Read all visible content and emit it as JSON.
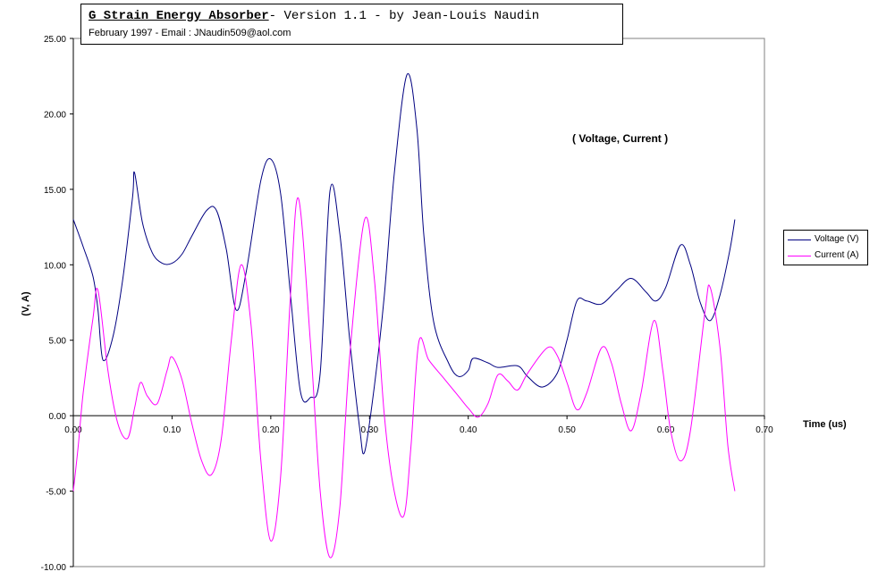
{
  "header": {
    "title_main": "G Strain Energy Absorber",
    "title_rest": "- Version 1.1 - by Jean-Louis Naudin",
    "subtitle": "February 1997 - Email : JNaudin509@aol.com"
  },
  "annotation": "( Voltage, Current )",
  "legend": {
    "placement": "right",
    "items": [
      {
        "label": "Voltage (V)",
        "color": "#000080"
      },
      {
        "label": "Current (A)",
        "color": "#ff00ff"
      }
    ]
  },
  "chart_data": {
    "type": "line",
    "title": "G Strain Energy Absorber- Version 1.1 - by Jean-Louis Naudin",
    "xlabel": "Time (us)",
    "ylabel": "(V, A)",
    "xlim": [
      0,
      0.7
    ],
    "ylim": [
      -10,
      25
    ],
    "x_ticks": [
      "0.00",
      "0.10",
      "0.20",
      "0.30",
      "0.40",
      "0.50",
      "0.60",
      "0.70"
    ],
    "y_ticks": [
      "25.00",
      "20.00",
      "15.00",
      "10.00",
      "5.00",
      "0.00",
      "-5.00",
      "-10.00"
    ],
    "grid": false,
    "series": [
      {
        "name": "Voltage (V)",
        "color": "#000080",
        "points": [
          [
            0,
            13
          ],
          [
            0.01,
            11.2
          ],
          [
            0.02,
            9.2
          ],
          [
            0.025,
            7.0
          ],
          [
            0.03,
            3.7
          ],
          [
            0.04,
            5.2
          ],
          [
            0.05,
            9.0
          ],
          [
            0.06,
            14.5
          ],
          [
            0.062,
            16.1
          ],
          [
            0.07,
            12.8
          ],
          [
            0.08,
            10.8
          ],
          [
            0.09,
            10.1
          ],
          [
            0.1,
            10.1
          ],
          [
            0.11,
            10.7
          ],
          [
            0.12,
            11.9
          ],
          [
            0.135,
            13.6
          ],
          [
            0.145,
            13.6
          ],
          [
            0.155,
            11.0
          ],
          [
            0.165,
            7.0
          ],
          [
            0.175,
            9.5
          ],
          [
            0.19,
            15.6
          ],
          [
            0.2,
            17.0
          ],
          [
            0.21,
            14.7
          ],
          [
            0.22,
            8.0
          ],
          [
            0.23,
            1.6
          ],
          [
            0.24,
            1.2
          ],
          [
            0.25,
            2.8
          ],
          [
            0.26,
            14.9
          ],
          [
            0.27,
            12.0
          ],
          [
            0.28,
            5.0
          ],
          [
            0.29,
            -0.8
          ],
          [
            0.295,
            -2.4
          ],
          [
            0.305,
            2.0
          ],
          [
            0.315,
            8.0
          ],
          [
            0.325,
            16.0
          ],
          [
            0.338,
            22.6
          ],
          [
            0.348,
            19.0
          ],
          [
            0.355,
            12.0
          ],
          [
            0.365,
            6.2
          ],
          [
            0.38,
            3.5
          ],
          [
            0.39,
            2.6
          ],
          [
            0.4,
            3.0
          ],
          [
            0.405,
            3.8
          ],
          [
            0.42,
            3.5
          ],
          [
            0.43,
            3.2
          ],
          [
            0.45,
            3.3
          ],
          [
            0.46,
            2.6
          ],
          [
            0.475,
            1.9
          ],
          [
            0.49,
            2.8
          ],
          [
            0.5,
            5.0
          ],
          [
            0.51,
            7.6
          ],
          [
            0.52,
            7.6
          ],
          [
            0.535,
            7.4
          ],
          [
            0.55,
            8.3
          ],
          [
            0.565,
            9.1
          ],
          [
            0.58,
            8.2
          ],
          [
            0.59,
            7.6
          ],
          [
            0.6,
            8.5
          ],
          [
            0.615,
            11.3
          ],
          [
            0.625,
            10.0
          ],
          [
            0.635,
            7.5
          ],
          [
            0.645,
            6.3
          ],
          [
            0.655,
            8.0
          ],
          [
            0.665,
            11.0
          ],
          [
            0.67,
            13.0
          ]
        ]
      },
      {
        "name": "Current (A)",
        "color": "#ff00ff",
        "points": [
          [
            0,
            -5.0
          ],
          [
            0.005,
            -2.0
          ],
          [
            0.01,
            1.5
          ],
          [
            0.02,
            6.5
          ],
          [
            0.025,
            8.3
          ],
          [
            0.035,
            3.0
          ],
          [
            0.045,
            -0.5
          ],
          [
            0.055,
            -1.5
          ],
          [
            0.062,
            0.5
          ],
          [
            0.068,
            2.2
          ],
          [
            0.075,
            1.3
          ],
          [
            0.085,
            0.8
          ],
          [
            0.095,
            3.0
          ],
          [
            0.1,
            3.9
          ],
          [
            0.11,
            2.4
          ],
          [
            0.12,
            -0.5
          ],
          [
            0.13,
            -3.0
          ],
          [
            0.14,
            -3.9
          ],
          [
            0.15,
            -1.5
          ],
          [
            0.16,
            5.0
          ],
          [
            0.17,
            10.0
          ],
          [
            0.18,
            6.0
          ],
          [
            0.19,
            -3.0
          ],
          [
            0.2,
            -8.3
          ],
          [
            0.21,
            -4.0
          ],
          [
            0.22,
            8.0
          ],
          [
            0.228,
            14.4
          ],
          [
            0.24,
            5.0
          ],
          [
            0.25,
            -5.0
          ],
          [
            0.26,
            -9.4
          ],
          [
            0.27,
            -6.0
          ],
          [
            0.28,
            4.0
          ],
          [
            0.295,
            13.0
          ],
          [
            0.305,
            9.0
          ],
          [
            0.315,
            0.0
          ],
          [
            0.325,
            -5.0
          ],
          [
            0.335,
            -6.6
          ],
          [
            0.342,
            -2.0
          ],
          [
            0.35,
            4.9
          ],
          [
            0.36,
            3.7
          ],
          [
            0.375,
            2.5
          ],
          [
            0.39,
            1.3
          ],
          [
            0.4,
            0.5
          ],
          [
            0.41,
            -0.1
          ],
          [
            0.42,
            0.8
          ],
          [
            0.43,
            2.7
          ],
          [
            0.44,
            2.3
          ],
          [
            0.45,
            1.7
          ],
          [
            0.46,
            2.8
          ],
          [
            0.48,
            4.5
          ],
          [
            0.49,
            4.0
          ],
          [
            0.5,
            2.2
          ],
          [
            0.51,
            0.4
          ],
          [
            0.52,
            1.5
          ],
          [
            0.535,
            4.5
          ],
          [
            0.545,
            3.5
          ],
          [
            0.555,
            0.8
          ],
          [
            0.565,
            -1.0
          ],
          [
            0.575,
            1.5
          ],
          [
            0.588,
            6.3
          ],
          [
            0.597,
            3.0
          ],
          [
            0.605,
            -1.0
          ],
          [
            0.615,
            -3.0
          ],
          [
            0.625,
            -1.0
          ],
          [
            0.64,
            7.0
          ],
          [
            0.645,
            8.5
          ],
          [
            0.655,
            4.5
          ],
          [
            0.663,
            -2.0
          ],
          [
            0.67,
            -5.0
          ]
        ]
      }
    ]
  }
}
